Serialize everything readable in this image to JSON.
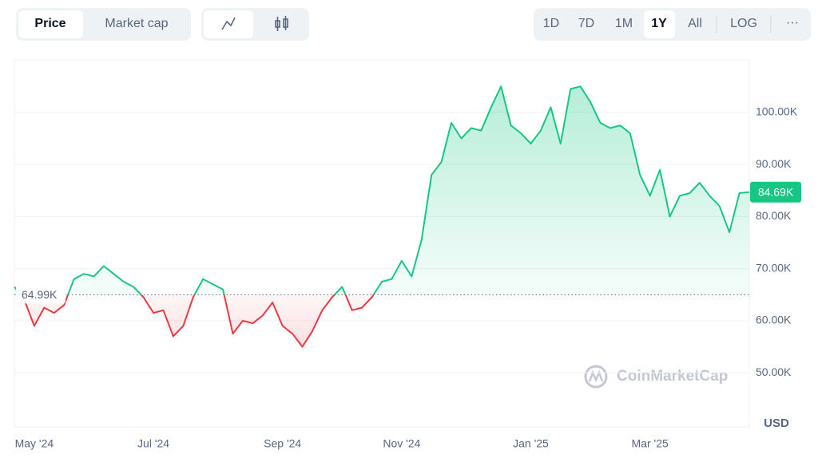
{
  "toolbar": {
    "tabs": [
      "Price",
      "Market cap"
    ],
    "ranges": [
      "1D",
      "7D",
      "1M",
      "1Y",
      "All"
    ],
    "log": "LOG",
    "more": "···"
  },
  "chart_data": {
    "type": "line",
    "unit": "USD",
    "watermark": "CoinMarketCap",
    "categories": [
      null,
      null,
      "May '24",
      null,
      null,
      null,
      null,
      null,
      null,
      null,
      null,
      null,
      null,
      null,
      "Jul '24",
      null,
      null,
      null,
      null,
      null,
      null,
      null,
      null,
      null,
      null,
      null,
      null,
      "Sep '24",
      null,
      null,
      null,
      null,
      null,
      null,
      null,
      null,
      null,
      null,
      null,
      "Nov '24",
      null,
      null,
      null,
      null,
      null,
      null,
      null,
      null,
      null,
      null,
      null,
      null,
      "Jan '25",
      null,
      null,
      null,
      null,
      null,
      null,
      null,
      null,
      null,
      null,
      null,
      "Mar '25",
      null,
      null,
      null,
      null,
      null,
      null,
      null,
      null,
      null,
      null
    ],
    "values": [
      66500,
      64000,
      59000,
      62500,
      61500,
      63000,
      68000,
      69000,
      68500,
      70500,
      69000,
      67500,
      66500,
      64500,
      61500,
      62000,
      57000,
      59000,
      64500,
      68000,
      67000,
      66000,
      57500,
      60000,
      59500,
      61000,
      63500,
      59000,
      57500,
      55000,
      58000,
      62000,
      64500,
      66500,
      62000,
      62500,
      64500,
      67500,
      68000,
      71500,
      68500,
      75500,
      88000,
      90500,
      98000,
      95000,
      97000,
      96500,
      101000,
      105000,
      97500,
      96000,
      94000,
      96500,
      101000,
      94000,
      104500,
      105000,
      102000,
      98000,
      97000,
      97500,
      96000,
      88000,
      84000,
      89000,
      80000,
      84000,
      84500,
      86500,
      84000,
      82000,
      77000,
      84500,
      84690
    ],
    "value_labels": [
      null,
      null,
      null,
      null,
      null,
      null,
      null,
      null,
      null,
      null,
      null,
      null,
      null,
      null,
      null,
      null,
      null,
      null,
      null,
      null,
      null,
      null,
      null,
      null,
      null,
      null,
      null,
      null,
      null,
      null,
      null,
      null,
      null,
      null,
      null,
      null,
      null,
      null,
      null,
      null,
      null,
      null,
      null,
      null,
      null,
      null,
      null,
      null,
      null,
      null,
      null,
      null,
      null,
      null,
      null,
      null,
      null,
      null,
      null,
      null,
      null,
      null,
      null,
      null,
      null,
      null,
      null,
      null,
      null,
      null,
      null,
      null,
      null,
      null,
      "84.69K"
    ],
    "baseline": {
      "value": 64990,
      "label": "64.99K"
    },
    "up_color": "#16c784",
    "down_color": "#ea3943",
    "ylim": [
      39600,
      110100
    ],
    "yticks": [
      {
        "value": 50000,
        "label": "50.00K"
      },
      {
        "value": 60000,
        "label": "60.00K"
      },
      {
        "value": 70000,
        "label": "70.00K"
      },
      {
        "value": 80000,
        "label": "80.00K"
      },
      {
        "value": 90000,
        "label": "90.00K"
      },
      {
        "value": 100000,
        "label": "100.00K"
      }
    ],
    "grid": true
  }
}
